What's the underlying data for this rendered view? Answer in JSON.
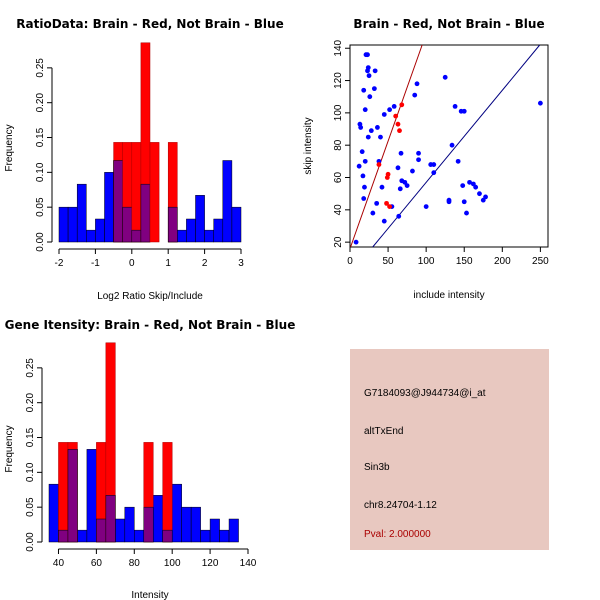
{
  "colors": {
    "red": "#ff0000",
    "blue": "#0000ff",
    "overlap": "#800080",
    "dark_red": "#aa0000",
    "dark_blue": "#000080",
    "info_bg": "#e8c8c0",
    "pval": "#aa0000"
  },
  "chart_data": [
    {
      "id": "ratio",
      "type": "histogram",
      "title": "RatioData: Brain - Red, Not Brain - Blue",
      "xlabel": "Log2 Ratio Skip/Include",
      "ylabel": "Frequency",
      "xlim": [
        -2,
        3
      ],
      "ylim": [
        0,
        0.29
      ],
      "xticks": [
        -2,
        -1,
        0,
        1,
        2,
        3
      ],
      "yticks": [
        0.0,
        0.05,
        0.1,
        0.15,
        0.2,
        0.25
      ],
      "ytick_labels": [
        "0.00",
        "0.05",
        "0.10",
        "0.15",
        "0.20",
        "0.25"
      ],
      "blue": {
        "bins": [
          [
            -2,
            -1.75
          ],
          [
            -1.75,
            -1.5
          ],
          [
            -1.5,
            -1.25
          ],
          [
            -1.25,
            -1
          ],
          [
            -1,
            -0.75
          ],
          [
            -0.75,
            -0.5
          ],
          [
            -0.5,
            -0.25
          ],
          [
            -0.25,
            0
          ],
          [
            0,
            0.25
          ],
          [
            0.25,
            0.5
          ],
          [
            0.5,
            0.75
          ],
          [
            0.75,
            1
          ],
          [
            1,
            1.25
          ],
          [
            1.25,
            1.5
          ],
          [
            1.5,
            1.75
          ],
          [
            1.75,
            2
          ],
          [
            2,
            2.25
          ],
          [
            2.25,
            2.5
          ],
          [
            2.5,
            2.75
          ],
          [
            2.75,
            3
          ]
        ],
        "values": [
          0.05,
          0.05,
          0.083,
          0.017,
          0.033,
          0.1,
          0.117,
          0.05,
          0.017,
          0.083,
          0.0,
          0.0,
          0.05,
          0.017,
          0.033,
          0.067,
          0.017,
          0.033,
          0.117,
          0.05
        ]
      },
      "red": {
        "bins": [
          [
            -0.5,
            -0.25
          ],
          [
            -0.25,
            0
          ],
          [
            0,
            0.25
          ],
          [
            0.25,
            0.5
          ],
          [
            0.5,
            0.75
          ],
          [
            0.75,
            1
          ],
          [
            1,
            1.25
          ]
        ],
        "values": [
          0.143,
          0.143,
          0.143,
          0.286,
          0.143,
          0.0,
          0.143
        ]
      }
    },
    {
      "id": "scatter",
      "type": "scatter",
      "title": "Brain - Red, Not Brain - Blue",
      "xlabel": "include intensity",
      "ylabel": "skip intensity",
      "xlim": [
        0,
        260
      ],
      "ylim": [
        17,
        142
      ],
      "xticks": [
        0,
        50,
        100,
        150,
        200,
        250
      ],
      "yticks": [
        20,
        40,
        60,
        80,
        100,
        120,
        140
      ],
      "blue_points": [
        [
          8,
          20
        ],
        [
          12,
          67
        ],
        [
          13,
          93
        ],
        [
          14,
          91
        ],
        [
          16,
          76
        ],
        [
          17,
          61
        ],
        [
          18,
          47
        ],
        [
          19,
          54
        ],
        [
          18,
          114
        ],
        [
          20,
          70
        ],
        [
          20,
          102
        ],
        [
          21,
          136
        ],
        [
          23,
          136
        ],
        [
          23,
          126
        ],
        [
          24,
          85
        ],
        [
          24,
          128
        ],
        [
          25,
          123
        ],
        [
          26,
          110
        ],
        [
          28,
          89
        ],
        [
          30,
          38
        ],
        [
          32,
          115
        ],
        [
          33,
          126
        ],
        [
          35,
          44
        ],
        [
          36,
          91
        ],
        [
          38,
          70
        ],
        [
          40,
          85
        ],
        [
          42,
          54
        ],
        [
          45,
          33
        ],
        [
          45,
          99
        ],
        [
          52,
          102
        ],
        [
          55,
          42
        ],
        [
          58,
          104
        ],
        [
          63,
          66
        ],
        [
          64,
          36
        ],
        [
          66,
          53
        ],
        [
          67,
          75
        ],
        [
          68,
          58
        ],
        [
          72,
          57
        ],
        [
          75,
          55
        ],
        [
          82,
          64
        ],
        [
          85,
          111
        ],
        [
          88,
          118
        ],
        [
          90,
          75
        ],
        [
          90,
          71
        ],
        [
          100,
          42
        ],
        [
          106,
          68
        ],
        [
          110,
          63
        ],
        [
          110,
          68
        ],
        [
          125,
          122
        ],
        [
          130,
          46
        ],
        [
          130,
          45
        ],
        [
          134,
          80
        ],
        [
          138,
          104
        ],
        [
          142,
          70
        ],
        [
          146,
          101
        ],
        [
          148,
          55
        ],
        [
          150,
          101
        ],
        [
          150,
          45
        ],
        [
          153,
          38
        ],
        [
          157,
          57
        ],
        [
          162,
          56
        ],
        [
          165,
          54
        ],
        [
          170,
          50
        ],
        [
          175,
          46
        ],
        [
          178,
          48
        ],
        [
          250,
          106
        ]
      ],
      "red_points": [
        [
          38,
          68
        ],
        [
          48,
          44
        ],
        [
          49,
          60
        ],
        [
          50,
          62
        ],
        [
          52,
          42
        ],
        [
          60,
          98
        ],
        [
          63,
          93
        ],
        [
          65,
          89
        ],
        [
          68,
          105
        ]
      ],
      "red_line": {
        "slope": 1.33,
        "intercept": 16
      },
      "blue_line": {
        "slope": 0.57,
        "intercept": 0
      }
    },
    {
      "id": "gene",
      "type": "histogram",
      "title": "Gene Itensity: Brain - Red, Not Brain - Blue",
      "xlabel": "Intensity",
      "ylabel": "Frequency",
      "xlim": [
        35,
        140
      ],
      "ylim": [
        0,
        0.29
      ],
      "xticks": [
        40,
        60,
        80,
        100,
        120,
        140
      ],
      "yticks": [
        0.0,
        0.05,
        0.1,
        0.15,
        0.2,
        0.25
      ],
      "ytick_labels": [
        "0.00",
        "0.05",
        "0.10",
        "0.15",
        "0.20",
        "0.25"
      ],
      "blue": {
        "bins": [
          [
            35,
            40
          ],
          [
            40,
            45
          ],
          [
            45,
            50
          ],
          [
            50,
            55
          ],
          [
            55,
            60
          ],
          [
            60,
            65
          ],
          [
            65,
            70
          ],
          [
            70,
            75
          ],
          [
            75,
            80
          ],
          [
            80,
            85
          ],
          [
            85,
            90
          ],
          [
            90,
            95
          ],
          [
            95,
            100
          ],
          [
            100,
            105
          ],
          [
            105,
            110
          ],
          [
            110,
            115
          ],
          [
            115,
            120
          ],
          [
            120,
            125
          ],
          [
            125,
            130
          ],
          [
            130,
            135
          ]
        ],
        "values": [
          0.083,
          0.017,
          0.133,
          0.017,
          0.133,
          0.033,
          0.067,
          0.033,
          0.05,
          0.017,
          0.05,
          0.067,
          0.017,
          0.083,
          0.05,
          0.05,
          0.017,
          0.033,
          0.017,
          0.033
        ]
      },
      "red": {
        "bins": [
          [
            40,
            45
          ],
          [
            45,
            50
          ],
          [
            60,
            65
          ],
          [
            65,
            70
          ],
          [
            85,
            90
          ],
          [
            95,
            100
          ]
        ],
        "values": [
          0.143,
          0.143,
          0.143,
          0.286,
          0.143,
          0.143
        ]
      }
    }
  ],
  "info": {
    "probe_id": "G7184093@J944734@i_at",
    "event_type": "altTxEnd",
    "gene": "Sin3b",
    "location": "chr8.24704-1.12",
    "pval": "Pval: 2.000000"
  }
}
